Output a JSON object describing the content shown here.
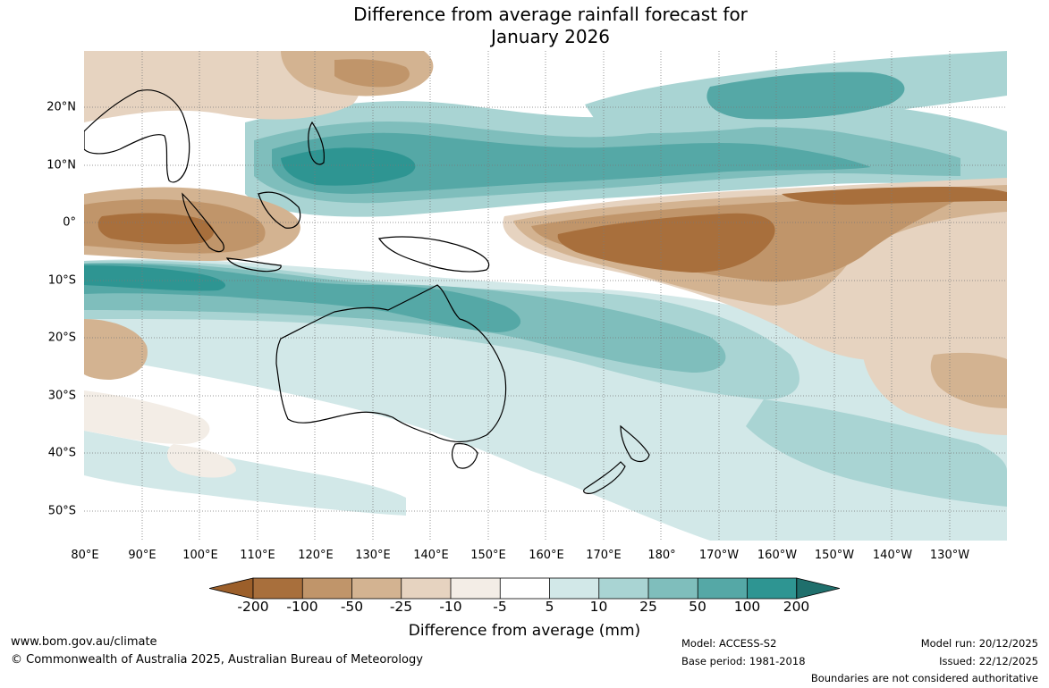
{
  "title": {
    "line1": "Difference from average rainfall forecast for",
    "line2": "January 2026"
  },
  "map": {
    "lat_labels": [
      "20°N",
      "10°N",
      "0°",
      "10°S",
      "20°S",
      "30°S",
      "40°S",
      "50°S"
    ],
    "lon_labels": [
      "80°E",
      "90°E",
      "100°E",
      "110°E",
      "120°E",
      "130°E",
      "140°E",
      "150°E",
      "160°E",
      "170°E",
      "180°",
      "170°W",
      "160°W",
      "150°W",
      "140°W",
      "130°W"
    ]
  },
  "colorbar": {
    "ticks": [
      "-200",
      "-100",
      "-50",
      "-25",
      "-10",
      "-5",
      "5",
      "10",
      "25",
      "50",
      "100",
      "200"
    ],
    "colors": [
      "#9c5f2a",
      "#a86f3c",
      "#c0956a",
      "#d3b391",
      "#e6d3c0",
      "#f3ede6",
      "#ffffff",
      "#d2e8e8",
      "#a9d4d3",
      "#7fbebc",
      "#55a8a6",
      "#2e9592",
      "#1f6f6c"
    ],
    "label": "Difference from average (mm)"
  },
  "footer": {
    "url": "www.bom.gov.au/climate",
    "copyright": "© Commonwealth of Australia 2025, Australian Bureau of Meteorology",
    "model": "Model: ACCESS-S2",
    "base_period": "Base period: 1981-2018",
    "model_run": "Model run: 20/12/2025",
    "issued": "Issued: 22/12/2025",
    "disclaimer": "Boundaries are not considered authoritative"
  }
}
